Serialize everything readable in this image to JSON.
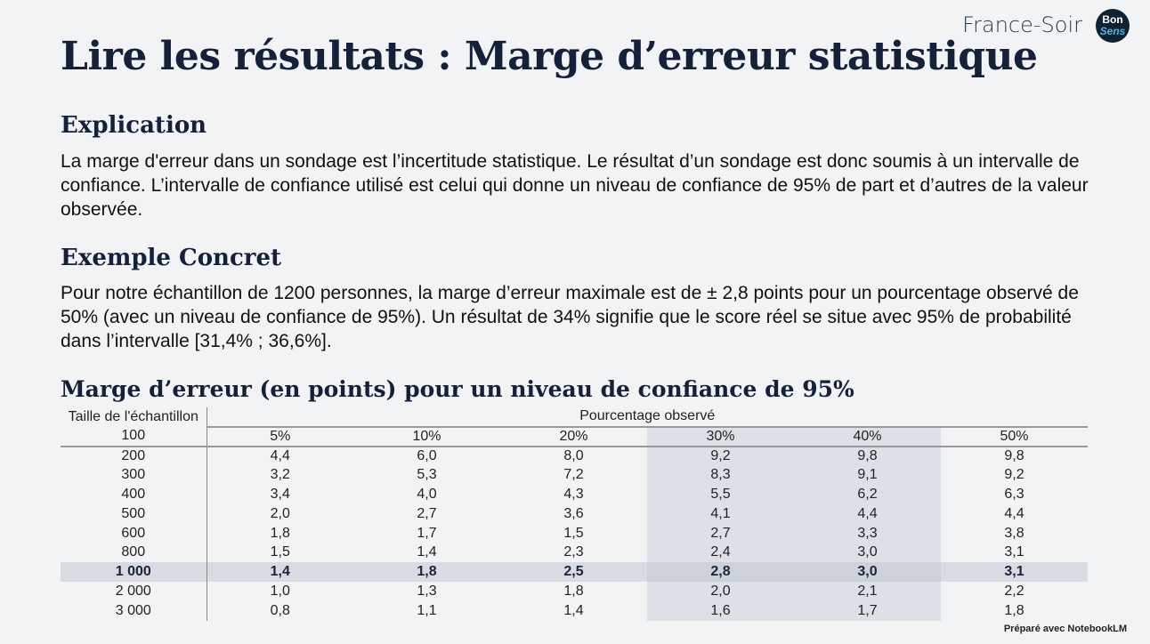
{
  "brand": {
    "name_left": "France",
    "dash": "-",
    "name_right": "Soir",
    "logo_top": "Bon",
    "logo_bottom": "Sens"
  },
  "title": "Lire les résultats : Marge d’erreur statistique",
  "sections": [
    {
      "heading": "Explication",
      "text": "La marge d'erreur dans un sondage est l’incertitude statistique. Le résultat d’un sondage est donc soumis à un intervalle de confiance. L’intervalle de confiance utilisé est celui qui donne un niveau de confiance de 95% de part et d’autres de la valeur observée."
    },
    {
      "heading": "Exemple Concret",
      "text": "Pour notre échantillon de 1200 personnes, la marge d’erreur maximale est de ± 2,8 points pour un pourcentage observé de 50% (avec un niveau de confiance de 95%). Un résultat de 34% signifie que le score réel se situe avec 95% de probabilité dans l’intervalle [31,4% ; 36,6%]."
    }
  ],
  "table": {
    "title": "Marge d’erreur (en points) pour un niveau de confiance de 95%",
    "row_header": "Taille de l'échantillon",
    "col_group": "Pourcentage observé",
    "first_row_label": "100",
    "columns": [
      "5%",
      "10%",
      "20%",
      "30%",
      "40%",
      "50%"
    ],
    "rows": [
      {
        "size": "200",
        "values": [
          "4,4",
          "6,0",
          "8,0",
          "9,2",
          "9,8",
          "9,8"
        ]
      },
      {
        "size": "300",
        "values": [
          "3,2",
          "5,3",
          "7,2",
          "8,3",
          "9,1",
          "9,2"
        ]
      },
      {
        "size": "400",
        "values": [
          "3,4",
          "4,0",
          "4,3",
          "5,5",
          "6,2",
          "6,3"
        ]
      },
      {
        "size": "500",
        "values": [
          "2,0",
          "2,7",
          "3,6",
          "4,1",
          "4,4",
          "4,4"
        ]
      },
      {
        "size": "600",
        "values": [
          "1,8",
          "1,7",
          "1,5",
          "2,7",
          "3,3",
          "3,8"
        ]
      },
      {
        "size": "800",
        "values": [
          "1,5",
          "1,4",
          "2,3",
          "2,4",
          "3,0",
          "3,1"
        ]
      },
      {
        "size": "1 000",
        "values": [
          "1,4",
          "1,8",
          "2,5",
          "2,8",
          "3,0",
          "3,1"
        ],
        "highlight": true
      },
      {
        "size": "2 000",
        "values": [
          "1,0",
          "1,3",
          "1,8",
          "2,0",
          "2,1",
          "2,2"
        ]
      },
      {
        "size": "3 000",
        "values": [
          "0,8",
          "1,1",
          "1,4",
          "1,6",
          "1,7",
          "1,8"
        ]
      }
    ]
  },
  "footer": "Préparé avec NotebookLM"
}
